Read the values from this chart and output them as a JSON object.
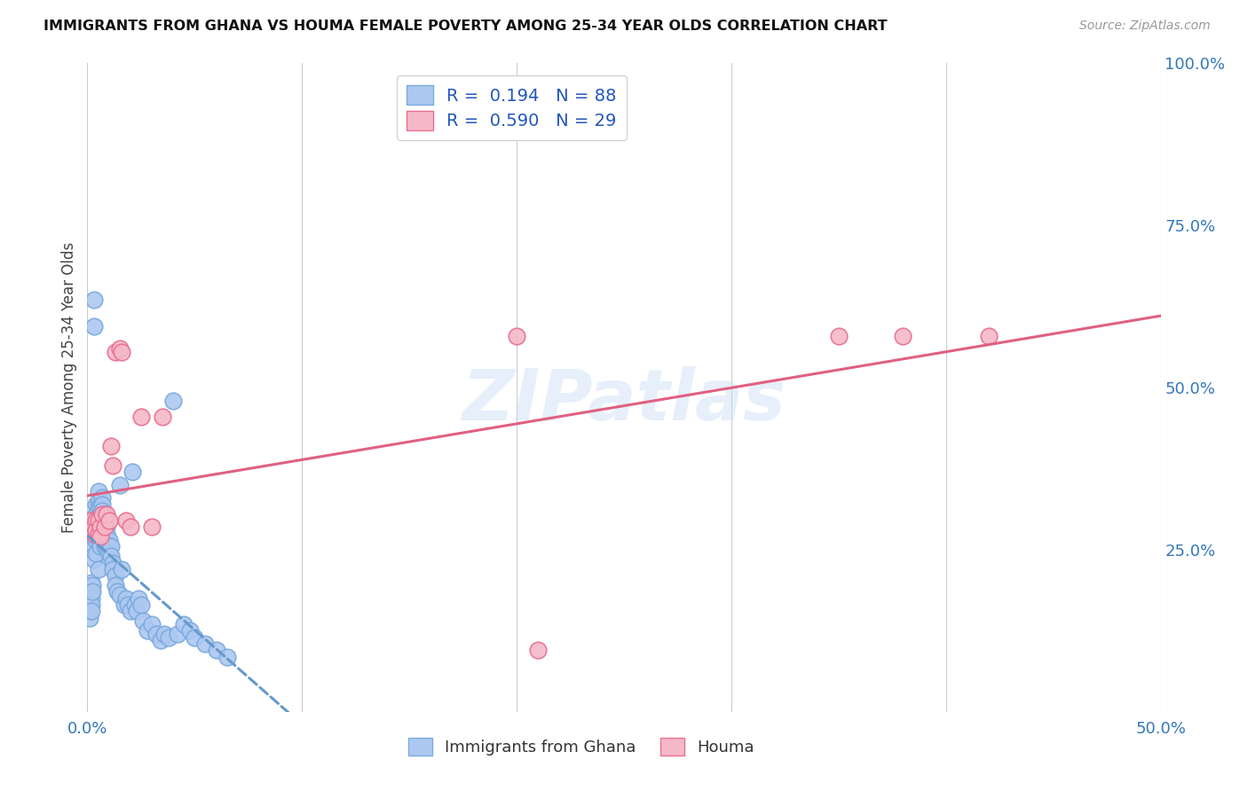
{
  "title": "IMMIGRANTS FROM GHANA VS HOUMA FEMALE POVERTY AMONG 25-34 YEAR OLDS CORRELATION CHART",
  "source": "Source: ZipAtlas.com",
  "ylabel": "Female Poverty Among 25-34 Year Olds",
  "xlim": [
    0,
    0.5
  ],
  "ylim": [
    0,
    1.0
  ],
  "x_ticks": [
    0.0,
    0.1,
    0.2,
    0.3,
    0.4,
    0.5
  ],
  "x_tick_labels": [
    "0.0%",
    "",
    "",
    "",
    "",
    "50.0%"
  ],
  "y_ticks_right": [
    0.0,
    0.25,
    0.5,
    0.75,
    1.0
  ],
  "y_tick_labels_right": [
    "",
    "25.0%",
    "50.0%",
    "75.0%",
    "100.0%"
  ],
  "ghana_color": "#adc8f0",
  "ghana_edge": "#7aaade",
  "houma_color": "#f5b8c8",
  "houma_edge": "#e87090",
  "ghana_R": 0.194,
  "ghana_N": 88,
  "houma_R": 0.59,
  "houma_N": 29,
  "legend_label_ghana": "Immigrants from Ghana",
  "legend_label_houma": "Houma",
  "watermark": "ZIPatlas",
  "ghana_x": [
    0.0005,
    0.0005,
    0.001,
    0.001,
    0.001,
    0.001,
    0.0015,
    0.0015,
    0.002,
    0.002,
    0.002,
    0.002,
    0.002,
    0.0025,
    0.0025,
    0.003,
    0.003,
    0.003,
    0.003,
    0.003,
    0.003,
    0.003,
    0.004,
    0.004,
    0.004,
    0.004,
    0.004,
    0.004,
    0.005,
    0.005,
    0.005,
    0.005,
    0.005,
    0.005,
    0.005,
    0.006,
    0.006,
    0.006,
    0.006,
    0.006,
    0.007,
    0.007,
    0.007,
    0.007,
    0.008,
    0.008,
    0.008,
    0.008,
    0.009,
    0.009,
    0.009,
    0.01,
    0.01,
    0.01,
    0.011,
    0.011,
    0.012,
    0.012,
    0.013,
    0.013,
    0.014,
    0.015,
    0.015,
    0.016,
    0.017,
    0.018,
    0.019,
    0.02,
    0.021,
    0.022,
    0.023,
    0.024,
    0.025,
    0.026,
    0.028,
    0.03,
    0.032,
    0.034,
    0.036,
    0.038,
    0.04,
    0.042,
    0.045,
    0.048,
    0.05,
    0.055,
    0.06,
    0.065
  ],
  "ghana_y": [
    0.175,
    0.155,
    0.185,
    0.17,
    0.16,
    0.145,
    0.19,
    0.18,
    0.2,
    0.185,
    0.175,
    0.165,
    0.155,
    0.195,
    0.185,
    0.635,
    0.595,
    0.3,
    0.28,
    0.265,
    0.255,
    0.235,
    0.32,
    0.305,
    0.295,
    0.28,
    0.265,
    0.245,
    0.34,
    0.325,
    0.315,
    0.295,
    0.28,
    0.265,
    0.22,
    0.315,
    0.305,
    0.295,
    0.275,
    0.255,
    0.33,
    0.32,
    0.31,
    0.29,
    0.305,
    0.295,
    0.27,
    0.255,
    0.285,
    0.275,
    0.255,
    0.265,
    0.255,
    0.245,
    0.255,
    0.24,
    0.23,
    0.22,
    0.21,
    0.195,
    0.185,
    0.35,
    0.18,
    0.22,
    0.165,
    0.175,
    0.165,
    0.155,
    0.37,
    0.165,
    0.155,
    0.175,
    0.165,
    0.14,
    0.125,
    0.135,
    0.12,
    0.11,
    0.12,
    0.115,
    0.48,
    0.12,
    0.135,
    0.125,
    0.115,
    0.105,
    0.095,
    0.085
  ],
  "houma_x": [
    0.001,
    0.002,
    0.003,
    0.003,
    0.004,
    0.004,
    0.005,
    0.005,
    0.006,
    0.006,
    0.007,
    0.008,
    0.009,
    0.01,
    0.011,
    0.012,
    0.013,
    0.015,
    0.016,
    0.018,
    0.02,
    0.025,
    0.03,
    0.035,
    0.2,
    0.21,
    0.35,
    0.38,
    0.42
  ],
  "houma_y": [
    0.285,
    0.295,
    0.285,
    0.275,
    0.295,
    0.28,
    0.295,
    0.275,
    0.285,
    0.27,
    0.305,
    0.285,
    0.305,
    0.295,
    0.41,
    0.38,
    0.555,
    0.56,
    0.555,
    0.295,
    0.285,
    0.455,
    0.285,
    0.455,
    0.58,
    0.095,
    0.58,
    0.58,
    0.58
  ],
  "ghana_line_color": "#6699cc",
  "houma_line_color": "#e06080"
}
